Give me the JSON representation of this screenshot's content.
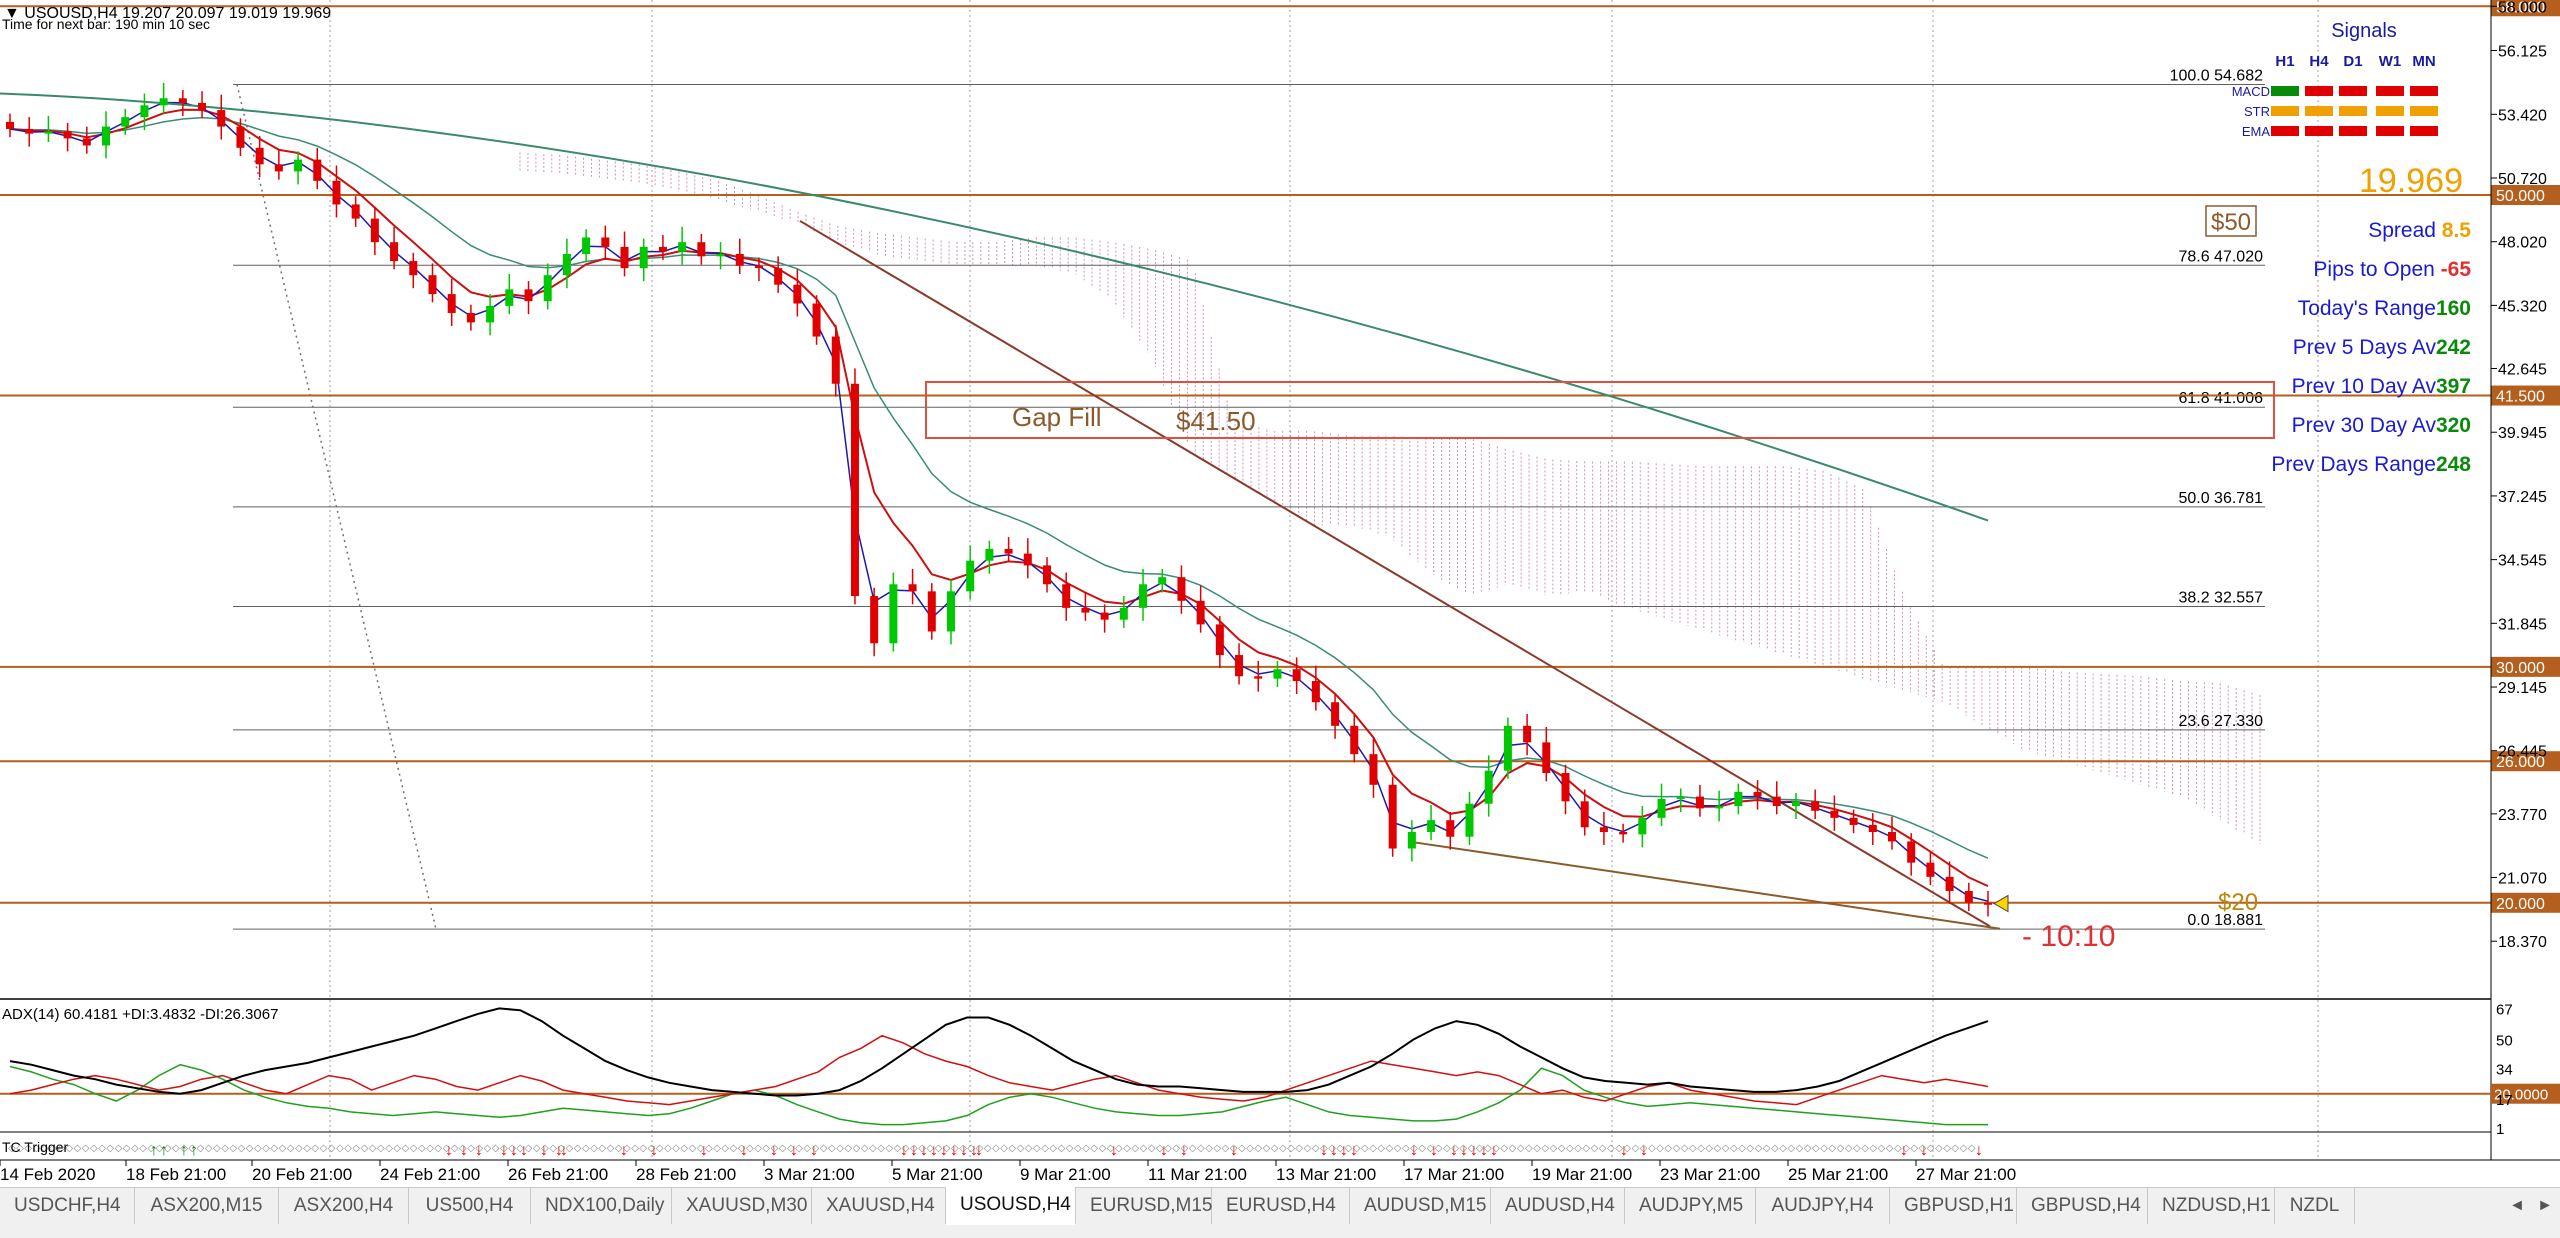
{
  "chart_header": {
    "symbol_line": "USOUSD,H4  19.207 20.097 19.019 19.969",
    "timer_line": "Time for next bar: 190 min 10 sec"
  },
  "tabs": [
    {
      "label": "USDCHF,H4"
    },
    {
      "label": "ASX200,M15"
    },
    {
      "label": "ASX200,H4"
    },
    {
      "label": "US500,H4"
    },
    {
      "label": "NDX100,Daily"
    },
    {
      "label": "XAUUSD,M30"
    },
    {
      "label": "XAUUSD,H4"
    },
    {
      "label": "USOUSD,H4",
      "active": true
    },
    {
      "label": "EURUSD,M15"
    },
    {
      "label": "EURUSD,H4"
    },
    {
      "label": "AUDUSD,M15"
    },
    {
      "label": "AUDUSD,H4"
    },
    {
      "label": "AUDJPY,M5"
    },
    {
      "label": "AUDJPY,H4"
    },
    {
      "label": "GBPUSD,H1"
    },
    {
      "label": "GBPUSD,H4"
    },
    {
      "label": "NZDUSD,H1"
    },
    {
      "label": "NZDL"
    }
  ],
  "signals_panel": {
    "title": "Signals",
    "timeframes": [
      "H1",
      "H4",
      "D1",
      "W1",
      "MN"
    ],
    "rows": [
      {
        "label": "MACD",
        "colors": [
          "#0a8a0a",
          "#e00000",
          "#e00000",
          "#e00000",
          "#e00000"
        ]
      },
      {
        "label": "STR",
        "colors": [
          "#f0a000",
          "#f0a000",
          "#f0a000",
          "#f0a000",
          "#f0a000"
        ]
      },
      {
        "label": "EMA",
        "colors": [
          "#e00000",
          "#e00000",
          "#e00000",
          "#e00000",
          "#e00000"
        ]
      }
    ],
    "bid": "19.969"
  },
  "stats": [
    {
      "label": "Spread ",
      "value": "8.5",
      "value_color": "#f0a000"
    },
    {
      "label": "Pips to Open ",
      "value": "-65",
      "value_color": "#e03030"
    },
    {
      "label": "Today's Range",
      "value": "160",
      "value_color": "#0a8a0a"
    },
    {
      "label": "Prev 5 Days Av",
      "value": "242",
      "value_color": "#0a8a0a"
    },
    {
      "label": "Prev 10 Day Av",
      "value": "397",
      "value_color": "#0a8a0a"
    },
    {
      "label": "Prev 30 Day Av",
      "value": "320",
      "value_color": "#0a8a0a"
    },
    {
      "label": "Prev Days Range",
      "value": "248",
      "value_color": "#0a8a0a"
    }
  ],
  "annotations": {
    "gap_fill": "Gap Fill",
    "gap_price": "$41.50",
    "label_50": "$50",
    "label_20": "$20",
    "countdown": "- 10:10"
  },
  "colors": {
    "bull": "#00c800",
    "bear": "#e00000",
    "level_line": "#b45f1e",
    "ichimoku_cloud": "#d070b0",
    "fib_line": "#606060",
    "adx_line": "#000000",
    "plus_di": "#20a020",
    "minus_di": "#d01010"
  },
  "chart_data": {
    "type": "line",
    "price_axis": {
      "tick_labels": [
        "58.000",
        "56.125",
        "53.420",
        "50.720",
        "48.020",
        "45.320",
        "42.645",
        "39.945",
        "37.245",
        "34.545",
        "31.845",
        "29.145",
        "26.445",
        "23.770",
        "21.070",
        "18.370"
      ],
      "range": [
        16.5,
        58.4
      ]
    },
    "time_axis": {
      "tick_labels": [
        "14 Feb 2020",
        "18 Feb 21:00",
        "20 Feb 21:00",
        "24 Feb 21:00",
        "26 Feb 21:00",
        "28 Feb 21:00",
        "3 Mar 21:00",
        "5 Mar 21:00",
        "9 Mar 21:00",
        "11 Mar 21:00",
        "13 Mar 21:00",
        "17 Mar 21:00",
        "19 Mar 21:00",
        "23 Mar 21:00",
        "25 Mar 21:00",
        "27 Mar 21:00"
      ]
    },
    "horizontal_levels": [
      {
        "label": "58.000",
        "price": 58.0
      },
      {
        "label": "50.000",
        "price": 50.0
      },
      {
        "label": "41.500",
        "price": 41.5
      },
      {
        "label": "30.000",
        "price": 30.0
      },
      {
        "label": "26.000",
        "price": 26.0
      },
      {
        "label": "20.000",
        "price": 20.0
      }
    ],
    "fibonacci": [
      {
        "level": "100.0",
        "price": "54.682"
      },
      {
        "level": "78.6",
        "price": "47.020"
      },
      {
        "level": "61.8",
        "price": "41.006"
      },
      {
        "level": "50.0",
        "price": "36.781"
      },
      {
        "level": "38.2",
        "price": "32.557"
      },
      {
        "level": "23.6",
        "price": "27.330"
      },
      {
        "level": "0.0",
        "price": "18.881"
      }
    ],
    "current_price": 19.969,
    "close_series": [
      52.8,
      52.6,
      52.7,
      52.4,
      52.1,
      52.9,
      53.3,
      53.8,
      54.1,
      53.9,
      53.6,
      52.9,
      52.0,
      51.3,
      51.0,
      51.5,
      50.6,
      49.6,
      49.0,
      48.0,
      47.2,
      46.6,
      45.8,
      45.0,
      44.6,
      45.3,
      46.0,
      45.5,
      46.6,
      47.5,
      48.2,
      47.8,
      46.9,
      47.8,
      47.6,
      48.0,
      47.4,
      47.5,
      47.0,
      46.9,
      46.2,
      45.4,
      44.0,
      42.0,
      33.0,
      31.0,
      33.5,
      33.2,
      31.5,
      33.2,
      34.5,
      35.0,
      34.8,
      34.3,
      33.5,
      32.5,
      32.3,
      32.0,
      32.5,
      33.5,
      33.8,
      32.8,
      31.8,
      30.5,
      29.6,
      29.5,
      29.9,
      29.4,
      28.5,
      27.5,
      26.3,
      25.0,
      22.3,
      23.0,
      23.5,
      22.8,
      24.2,
      25.6,
      27.5,
      26.8,
      25.5,
      24.3,
      23.2,
      23.0,
      22.9,
      23.6,
      24.4,
      24.5,
      24.0,
      24.1,
      24.7,
      24.5,
      24.1,
      24.3,
      23.9,
      23.6,
      23.3,
      23.0,
      22.6,
      21.7,
      21.1,
      20.5,
      20.0,
      19.969
    ],
    "adx_panel": {
      "label": "ADX(14) 60.4181 +DI:3.4832 -DI:26.3067",
      "tick_labels": [
        "67",
        "50",
        "34",
        "17",
        "1"
      ],
      "level_label": "20.0000",
      "range": [
        0,
        70
      ],
      "level": 20,
      "adx": [
        38,
        36,
        33,
        30,
        28,
        25,
        23,
        21,
        20,
        22,
        26,
        30,
        33,
        35,
        37,
        40,
        43,
        46,
        49,
        52,
        56,
        60,
        64,
        67,
        66,
        60,
        52,
        45,
        38,
        33,
        29,
        26,
        24,
        22,
        21,
        20,
        19,
        19,
        20,
        22,
        27,
        34,
        42,
        50,
        58,
        62,
        62,
        58,
        52,
        45,
        38,
        33,
        28,
        25,
        24,
        24,
        23,
        22,
        21,
        21,
        21,
        22,
        25,
        30,
        35,
        42,
        50,
        56,
        60,
        58,
        53,
        46,
        40,
        34,
        29,
        27,
        26,
        25,
        26,
        24,
        23,
        22,
        21,
        21,
        22,
        24,
        27,
        32,
        37,
        42,
        47,
        52,
        56,
        60
      ],
      "plus_di": [
        35,
        32,
        28,
        25,
        20,
        16,
        22,
        30,
        36,
        33,
        28,
        22,
        18,
        15,
        13,
        12,
        10,
        9,
        8,
        9,
        10,
        9,
        8,
        7,
        8,
        10,
        12,
        11,
        10,
        9,
        8,
        9,
        12,
        16,
        20,
        22,
        19,
        14,
        10,
        6,
        4,
        3,
        3,
        4,
        5,
        8,
        14,
        18,
        20,
        18,
        15,
        12,
        10,
        9,
        8,
        8,
        9,
        10,
        13,
        16,
        18,
        14,
        10,
        8,
        7,
        6,
        5,
        5,
        6,
        10,
        15,
        22,
        34,
        30,
        22,
        18,
        15,
        13,
        14,
        15,
        14,
        13,
        12,
        11,
        10,
        9,
        8,
        7,
        6,
        5,
        4,
        3,
        3,
        3
      ],
      "minus_di": [
        20,
        22,
        25,
        28,
        30,
        28,
        25,
        22,
        24,
        28,
        30,
        26,
        22,
        20,
        25,
        30,
        28,
        22,
        26,
        30,
        28,
        24,
        22,
        26,
        30,
        27,
        22,
        20,
        18,
        16,
        15,
        14,
        16,
        18,
        20,
        22,
        24,
        28,
        32,
        40,
        45,
        52,
        48,
        42,
        38,
        35,
        30,
        26,
        24,
        22,
        25,
        28,
        30,
        26,
        22,
        20,
        18,
        17,
        16,
        18,
        22,
        26,
        30,
        34,
        38,
        36,
        34,
        32,
        30,
        32,
        30,
        25,
        20,
        22,
        18,
        16,
        20,
        24,
        26,
        22,
        20,
        18,
        16,
        15,
        14,
        18,
        22,
        26,
        30,
        28,
        26,
        28,
        26,
        24
      ]
    },
    "trigger_row_label": "TC Trigger"
  }
}
